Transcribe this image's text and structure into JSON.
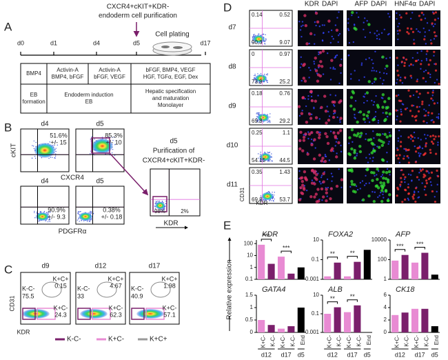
{
  "panel_labels": [
    "A",
    "B",
    "C",
    "D",
    "E"
  ],
  "panel_a": {
    "days": [
      "d0",
      "d1",
      "d4",
      "d5",
      "d17"
    ],
    "purification": [
      "CXCR4+cKIT+KDR-",
      "endoderm cell purification"
    ],
    "plating": "Cell plating",
    "factors": [
      [
        "BMP4"
      ],
      [
        "Activin-A",
        "BMP4, bFGF"
      ],
      [
        "Activin-A",
        "bFGF, VEGF"
      ],
      [
        "bFGF, BMP4, VEGF",
        "HGF, TGFα, EGF, Dex"
      ]
    ],
    "stages": [
      [
        "EB",
        "formation"
      ],
      [
        "Endoderm induction",
        "EB"
      ],
      [
        "Hepatic specification",
        "and maturation",
        "Monolayer"
      ]
    ]
  },
  "panel_b": {
    "y_label": "cKIT",
    "x_label_top": "CXCR4",
    "x_label_bottom": "PDGFRα",
    "top_plots": [
      {
        "day": "d4",
        "percent": "51.6%",
        "sd": "+/- 15"
      },
      {
        "day": "d5",
        "percent": "85.3%",
        "sd": "+/- 10"
      }
    ],
    "bottom_plots": [
      {
        "day": "d4",
        "percent": "90.9%",
        "sd": "+/- 9.3"
      },
      {
        "day": "d5",
        "percent": "0.38%",
        "sd": "+/- 0.18"
      }
    ],
    "purified": {
      "day": "d5",
      "title": [
        "Purification of",
        "CXCR4+cKIT+KDR-"
      ],
      "left": "98%",
      "right": "2%",
      "x_label": "KDR"
    }
  },
  "panel_c": {
    "y_label": "CD31",
    "x_label": "KDR",
    "gate_labels": [
      "K-C-",
      "K+C+",
      "K+C-"
    ],
    "plots": [
      {
        "day": "d9",
        "values": [
          "75.5",
          "0.15",
          "24.3"
        ]
      },
      {
        "day": "d12",
        "values": [
          "33",
          "4.67",
          "62.3"
        ]
      },
      {
        "day": "d17",
        "values": [
          "40.9",
          "1.98",
          "57.1"
        ]
      }
    ],
    "legend": [
      "K-C-",
      "K+C-",
      "K+C+"
    ]
  },
  "panel_d": {
    "stains": [
      {
        "marker": "KDR",
        "counter": "DAPI"
      },
      {
        "marker": "AFP",
        "counter": "DAPI"
      },
      {
        "marker": "HNF4α",
        "counter": "DAPI"
      }
    ],
    "y_label": "CD31",
    "x_label": "KDR",
    "rows": [
      {
        "day": "d7",
        "q": [
          "0.14",
          "0.52",
          "90.3",
          "9.07"
        ]
      },
      {
        "day": "d8",
        "q": [
          "0",
          "0.97",
          "73.9",
          "25.2"
        ]
      },
      {
        "day": "d9",
        "q": [
          "0.18",
          "0.76",
          "69.8",
          "29.2"
        ]
      },
      {
        "day": "d10",
        "q": [
          "0.25",
          "1.1",
          "54.15",
          "44.5"
        ]
      },
      {
        "day": "d11",
        "q": [
          "0.35",
          "1.43",
          "69.8",
          "53.7"
        ]
      }
    ]
  },
  "panel_e": {
    "y_label": "Relative expression",
    "categories": [
      "K+C-",
      "K-C-",
      "K+C-",
      "K-C-",
      "End"
    ],
    "groups": [
      "d12",
      "d17",
      "d5"
    ],
    "colors": [
      "#e88bd3",
      "#7a1f6b",
      "#e88bd3",
      "#7a1f6b",
      "#000000"
    ],
    "charts": [
      {
        "title": "KDR",
        "log": true,
        "ylim": [
          0.1,
          200
        ],
        "yticks": [
          0.1,
          1,
          10,
          100
        ],
        "values": [
          80,
          2,
          8,
          0.3,
          1
        ],
        "significance": [
          "***",
          "***"
        ]
      },
      {
        "title": "FOXA2",
        "log": true,
        "ylim": [
          0.001,
          10
        ],
        "yticks": [
          0.001,
          0.1,
          10
        ],
        "values": [
          0.002,
          0.05,
          0.002,
          0.06,
          1
        ],
        "significance": [
          "**",
          "**"
        ]
      },
      {
        "title": "AFP",
        "log": true,
        "ylim": [
          1,
          10000
        ],
        "yticks": [
          1,
          100,
          10000
        ],
        "values": [
          80,
          300,
          50,
          500,
          3
        ],
        "significance": [
          "***",
          "***"
        ]
      },
      {
        "title": "GATA4",
        "log": false,
        "ylim": [
          0,
          1.5
        ],
        "yticks": [
          0,
          0.5,
          1,
          1.5
        ],
        "values": [
          0.5,
          0.3,
          0.15,
          0.25,
          1.0
        ],
        "significance": []
      },
      {
        "title": "ALB",
        "log": true,
        "ylim": [
          0.001,
          10
        ],
        "yticks": [
          0.001,
          0.1,
          10
        ],
        "values": [
          0.1,
          0.5,
          0.15,
          0.8,
          null
        ],
        "significance": [
          "**",
          "**"
        ]
      },
      {
        "title": "CK18",
        "log": false,
        "ylim": [
          0,
          6
        ],
        "yticks": [
          0,
          2,
          4,
          6
        ],
        "values": [
          2.8,
          3.2,
          3.8,
          3.8,
          1.0
        ],
        "significance": []
      }
    ]
  }
}
